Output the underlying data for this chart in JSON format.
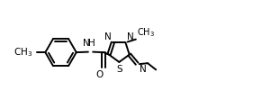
{
  "bg_color": "#ffffff",
  "line_color": "#000000",
  "line_width": 1.4,
  "font_size": 7.5,
  "fig_width": 2.81,
  "fig_height": 1.21,
  "dpi": 100,
  "xlim": [
    0.0,
    10.5
  ],
  "ylim": [
    -1.5,
    3.5
  ]
}
